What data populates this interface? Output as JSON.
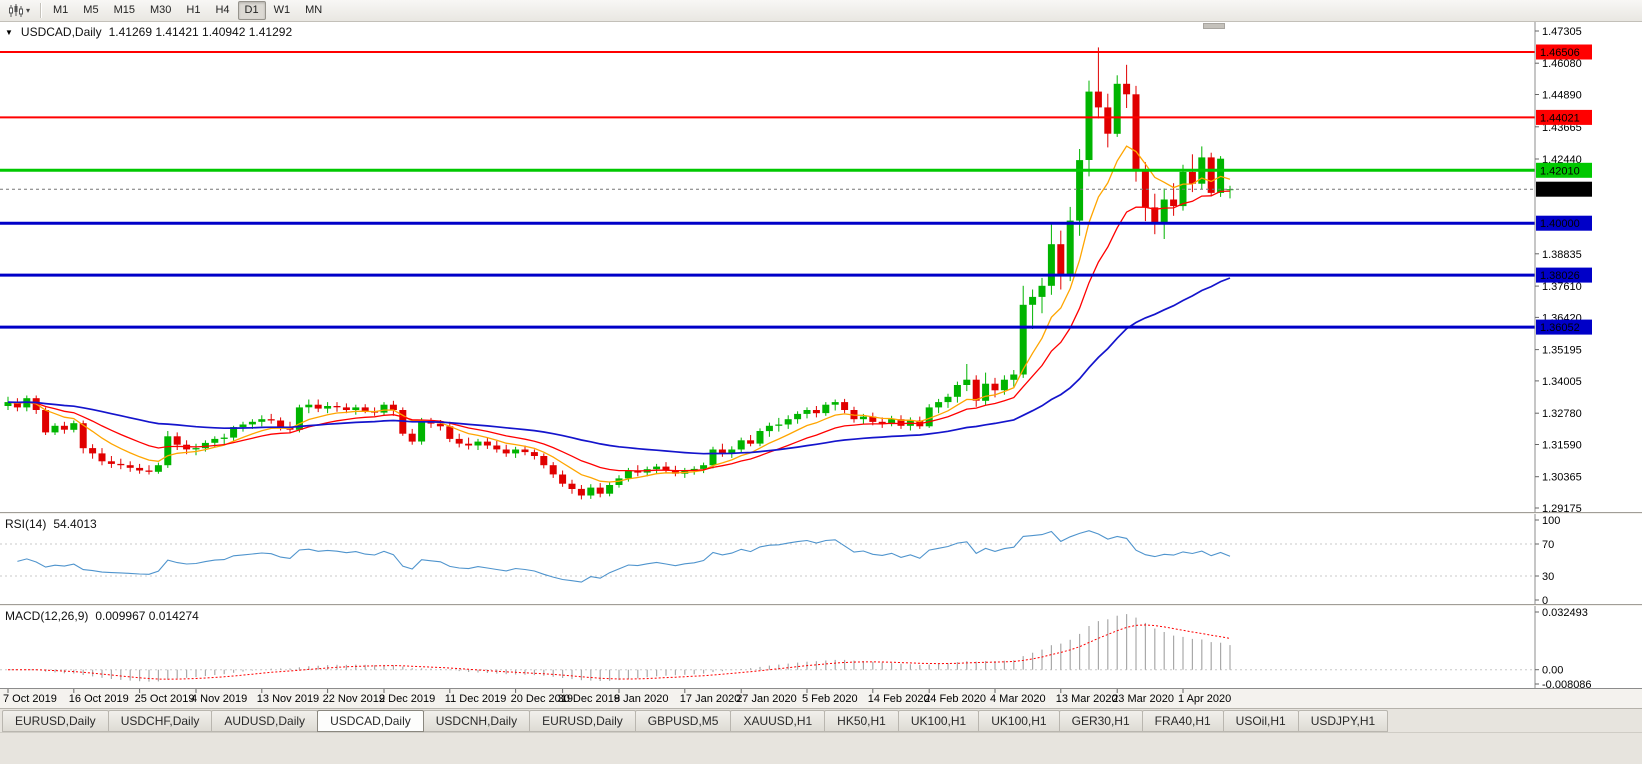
{
  "toolbar": {
    "timeframes": [
      "M1",
      "M5",
      "M15",
      "M30",
      "H1",
      "H4",
      "D1",
      "W1",
      "MN"
    ],
    "active": "D1"
  },
  "icons": {
    "dropdown_caret": "▾",
    "symbol_marker": "▼",
    "chart_type": "candlestick-chart-icon"
  },
  "chart_data": {
    "type": "candlestick",
    "symbol": "USDCAD",
    "timeframe": "Daily",
    "title": "USDCAD,Daily",
    "ohlc_readout": "1.41269 1.41421 1.40942 1.41292",
    "last_bar": {
      "open": 1.41269,
      "high": 1.41421,
      "low": 1.40942,
      "close": 1.41292
    },
    "style": {
      "up_color": "#00b400",
      "down_color": "#e00000",
      "background": "#ffffff"
    },
    "y_axis": {
      "max": 1.47305,
      "min": 1.29175,
      "ticks": [
        "1.47305",
        "1.46080",
        "1.44890",
        "1.43665",
        "1.42440",
        "1.38835",
        "1.37610",
        "1.36420",
        "1.35195",
        "1.34005",
        "1.32780",
        "1.31590",
        "1.30365",
        "1.29175"
      ]
    },
    "x_axis": {
      "labels": [
        {
          "i": 0,
          "t": "7 Oct 2019"
        },
        {
          "i": 7,
          "t": "16 Oct 2019"
        },
        {
          "i": 14,
          "t": "25 Oct 2019"
        },
        {
          "i": 20,
          "t": "4 Nov 2019"
        },
        {
          "i": 27,
          "t": "13 Nov 2019"
        },
        {
          "i": 34,
          "t": "22 Nov 2019"
        },
        {
          "i": 40,
          "t": "2 Dec 2019"
        },
        {
          "i": 47,
          "t": "11 Dec 2019"
        },
        {
          "i": 54,
          "t": "20 Dec 2019"
        },
        {
          "i": 59,
          "t": "30 Dec 2019"
        },
        {
          "i": 65,
          "t": "8 Jan 2020"
        },
        {
          "i": 72,
          "t": "17 Jan 2020"
        },
        {
          "i": 78,
          "t": "27 Jan 2020"
        },
        {
          "i": 85,
          "t": "5 Feb 2020"
        },
        {
          "i": 92,
          "t": "14 Feb 2020"
        },
        {
          "i": 98,
          "t": "24 Feb 2020"
        },
        {
          "i": 105,
          "t": "4 Mar 2020"
        },
        {
          "i": 112,
          "t": "13 Mar 2020"
        },
        {
          "i": 118,
          "t": "23 Mar 2020"
        },
        {
          "i": 125,
          "t": "1 Apr 2020"
        }
      ]
    },
    "candles": [
      [
        1.3305,
        1.334,
        1.329,
        1.332
      ],
      [
        1.332,
        1.3335,
        1.3285,
        1.33
      ],
      [
        1.33,
        1.3345,
        1.3285,
        1.3335
      ],
      [
        1.3335,
        1.3345,
        1.3275,
        1.329
      ],
      [
        1.329,
        1.33,
        1.3195,
        1.3205
      ],
      [
        1.3205,
        1.324,
        1.3195,
        1.323
      ],
      [
        1.323,
        1.3245,
        1.32,
        1.3215
      ],
      [
        1.3215,
        1.325,
        1.3205,
        1.324
      ],
      [
        1.324,
        1.325,
        1.3125,
        1.3145
      ],
      [
        1.3145,
        1.316,
        1.3105,
        1.3125
      ],
      [
        1.3125,
        1.3145,
        1.308,
        1.3095
      ],
      [
        1.3095,
        1.3115,
        1.307,
        1.3085
      ],
      [
        1.3085,
        1.3105,
        1.3065,
        1.308
      ],
      [
        1.308,
        1.3095,
        1.3055,
        1.307
      ],
      [
        1.307,
        1.3085,
        1.3048,
        1.306
      ],
      [
        1.306,
        1.308,
        1.3045,
        1.3055
      ],
      [
        1.3055,
        1.309,
        1.3048,
        1.308
      ],
      [
        1.308,
        1.321,
        1.307,
        1.319
      ],
      [
        1.319,
        1.3205,
        1.3138,
        1.3158
      ],
      [
        1.3158,
        1.3175,
        1.3122,
        1.314
      ],
      [
        1.314,
        1.3162,
        1.3118,
        1.3145
      ],
      [
        1.3145,
        1.3175,
        1.3132,
        1.3165
      ],
      [
        1.3165,
        1.319,
        1.3148,
        1.318
      ],
      [
        1.318,
        1.32,
        1.3158,
        1.3185
      ],
      [
        1.3185,
        1.323,
        1.3172,
        1.3225
      ],
      [
        1.3225,
        1.3245,
        1.3208,
        1.3235
      ],
      [
        1.3235,
        1.3255,
        1.3218,
        1.3245
      ],
      [
        1.3245,
        1.327,
        1.3228,
        1.3255
      ],
      [
        1.3255,
        1.3275,
        1.3238,
        1.325
      ],
      [
        1.325,
        1.3262,
        1.3212,
        1.3225
      ],
      [
        1.3225,
        1.3245,
        1.3202,
        1.3215
      ],
      [
        1.3215,
        1.331,
        1.3205,
        1.33
      ],
      [
        1.33,
        1.333,
        1.3278,
        1.331
      ],
      [
        1.331,
        1.333,
        1.3282,
        1.3295
      ],
      [
        1.3295,
        1.332,
        1.3278,
        1.3305
      ],
      [
        1.3305,
        1.332,
        1.3283,
        1.33
      ],
      [
        1.33,
        1.3315,
        1.3278,
        1.329
      ],
      [
        1.329,
        1.331,
        1.3272,
        1.33
      ],
      [
        1.33,
        1.3312,
        1.3278,
        1.3285
      ],
      [
        1.3285,
        1.33,
        1.3268,
        1.328
      ],
      [
        1.328,
        1.332,
        1.3268,
        1.331
      ],
      [
        1.331,
        1.3325,
        1.3268,
        1.329
      ],
      [
        1.329,
        1.33,
        1.3192,
        1.32
      ],
      [
        1.32,
        1.3218,
        1.3158,
        1.317
      ],
      [
        1.317,
        1.326,
        1.3158,
        1.3248
      ],
      [
        1.3248,
        1.326,
        1.3222,
        1.3238
      ],
      [
        1.3238,
        1.3252,
        1.3212,
        1.3228
      ],
      [
        1.3228,
        1.3245,
        1.3168,
        1.318
      ],
      [
        1.318,
        1.32,
        1.3148,
        1.3162
      ],
      [
        1.3162,
        1.3185,
        1.314,
        1.3155
      ],
      [
        1.3155,
        1.318,
        1.3138,
        1.317
      ],
      [
        1.317,
        1.3185,
        1.3142,
        1.3155
      ],
      [
        1.3155,
        1.3172,
        1.3128,
        1.314
      ],
      [
        1.314,
        1.3158,
        1.3112,
        1.3125
      ],
      [
        1.3125,
        1.315,
        1.3108,
        1.314
      ],
      [
        1.314,
        1.3155,
        1.3118,
        1.313
      ],
      [
        1.313,
        1.314,
        1.3102,
        1.3115
      ],
      [
        1.3115,
        1.3125,
        1.3068,
        1.308
      ],
      [
        1.308,
        1.3092,
        1.3032,
        1.3045
      ],
      [
        1.3045,
        1.306,
        1.2998,
        1.301
      ],
      [
        1.301,
        1.3025,
        1.2972,
        1.299
      ],
      [
        1.299,
        1.3005,
        1.295,
        1.2965
      ],
      [
        1.2965,
        1.3008,
        1.2952,
        1.2995
      ],
      [
        1.2995,
        1.3012,
        1.2958,
        1.2972
      ],
      [
        1.2972,
        1.3015,
        1.2962,
        1.3005
      ],
      [
        1.3005,
        1.3042,
        1.2995,
        1.303
      ],
      [
        1.303,
        1.307,
        1.3018,
        1.3058
      ],
      [
        1.3058,
        1.308,
        1.3038,
        1.3052
      ],
      [
        1.3052,
        1.3075,
        1.3038,
        1.3065
      ],
      [
        1.3065,
        1.3085,
        1.3048,
        1.3075
      ],
      [
        1.3075,
        1.3092,
        1.3052,
        1.3062
      ],
      [
        1.3062,
        1.3078,
        1.3038,
        1.3048
      ],
      [
        1.3048,
        1.307,
        1.3032,
        1.306
      ],
      [
        1.306,
        1.3076,
        1.3044,
        1.3066
      ],
      [
        1.3066,
        1.309,
        1.305,
        1.308
      ],
      [
        1.308,
        1.315,
        1.3068,
        1.314
      ],
      [
        1.314,
        1.3162,
        1.3112,
        1.3125
      ],
      [
        1.3125,
        1.3152,
        1.3108,
        1.314
      ],
      [
        1.314,
        1.3185,
        1.3128,
        1.3175
      ],
      [
        1.3175,
        1.3195,
        1.3152,
        1.3162
      ],
      [
        1.3162,
        1.322,
        1.3152,
        1.321
      ],
      [
        1.321,
        1.3242,
        1.3188,
        1.323
      ],
      [
        1.323,
        1.326,
        1.3208,
        1.3235
      ],
      [
        1.3235,
        1.327,
        1.3218,
        1.3255
      ],
      [
        1.3255,
        1.3285,
        1.3238,
        1.3275
      ],
      [
        1.3275,
        1.33,
        1.3258,
        1.329
      ],
      [
        1.329,
        1.3305,
        1.3262,
        1.3278
      ],
      [
        1.3278,
        1.332,
        1.3268,
        1.331
      ],
      [
        1.331,
        1.333,
        1.3288,
        1.332
      ],
      [
        1.332,
        1.3332,
        1.3278,
        1.329
      ],
      [
        1.329,
        1.3302,
        1.3242,
        1.3255
      ],
      [
        1.3255,
        1.3275,
        1.3238,
        1.3265
      ],
      [
        1.3265,
        1.328,
        1.3232,
        1.3245
      ],
      [
        1.3245,
        1.3262,
        1.3222,
        1.3238
      ],
      [
        1.3238,
        1.3268,
        1.3228,
        1.3255
      ],
      [
        1.3255,
        1.327,
        1.3218,
        1.323
      ],
      [
        1.323,
        1.3262,
        1.3212,
        1.325
      ],
      [
        1.325,
        1.3265,
        1.3218,
        1.3228
      ],
      [
        1.3228,
        1.3312,
        1.3222,
        1.33
      ],
      [
        1.33,
        1.3332,
        1.3278,
        1.332
      ],
      [
        1.332,
        1.3352,
        1.3298,
        1.334
      ],
      [
        1.334,
        1.3398,
        1.3318,
        1.3385
      ],
      [
        1.3385,
        1.3465,
        1.3362,
        1.3405
      ],
      [
        1.3405,
        1.3422,
        1.3302,
        1.3325
      ],
      [
        1.3325,
        1.3432,
        1.3308,
        1.339
      ],
      [
        1.339,
        1.3412,
        1.3338,
        1.3365
      ],
      [
        1.3365,
        1.3422,
        1.3348,
        1.3405
      ],
      [
        1.3405,
        1.3442,
        1.3378,
        1.3425
      ],
      [
        1.3425,
        1.3762,
        1.3412,
        1.369
      ],
      [
        1.369,
        1.3748,
        1.3598,
        1.372
      ],
      [
        1.372,
        1.3792,
        1.3658,
        1.3762
      ],
      [
        1.3762,
        1.3995,
        1.3728,
        1.392
      ],
      [
        1.392,
        1.3972,
        1.3748,
        1.3802
      ],
      [
        1.3802,
        1.4062,
        1.378,
        1.401
      ],
      [
        1.401,
        1.4282,
        1.3952,
        1.424
      ],
      [
        1.424,
        1.4542,
        1.4178,
        1.45
      ],
      [
        1.45,
        1.4668,
        1.4398,
        1.444
      ],
      [
        1.444,
        1.4492,
        1.4288,
        1.434
      ],
      [
        1.434,
        1.4562,
        1.4328,
        1.453
      ],
      [
        1.453,
        1.4602,
        1.4438,
        1.449
      ],
      [
        1.449,
        1.4522,
        1.4158,
        1.42
      ],
      [
        1.42,
        1.4232,
        1.4008,
        1.406
      ],
      [
        1.406,
        1.4112,
        1.3958,
        1.3995
      ],
      [
        1.3995,
        1.4132,
        1.394,
        1.409
      ],
      [
        1.409,
        1.4152,
        1.4028,
        1.4065
      ],
      [
        1.4065,
        1.4222,
        1.4048,
        1.4195
      ],
      [
        1.4195,
        1.4262,
        1.4118,
        1.415
      ],
      [
        1.415,
        1.4292,
        1.4128,
        1.425
      ],
      [
        1.425,
        1.4268,
        1.4102,
        1.4115
      ],
      [
        1.4115,
        1.4255,
        1.41,
        1.4245
      ],
      [
        1.41269,
        1.41421,
        1.40942,
        1.41292
      ]
    ],
    "overlays": {
      "moving_averages": [
        {
          "name": "ma-fast",
          "period": 8,
          "color": "#ffa500"
        },
        {
          "name": "ma-mid",
          "period": 16,
          "color": "#ff0000"
        },
        {
          "name": "ma-slow",
          "period": 50,
          "color": "#1414cc"
        }
      ],
      "hlines": [
        {
          "price": 1.46506,
          "label": "1.46506",
          "color": "#ff0000",
          "width": 2,
          "label_text_color": "#ffffff"
        },
        {
          "price": 1.44021,
          "label": "1.44021",
          "color": "#ff0000",
          "width": 2,
          "label_text_color": "#ffffff"
        },
        {
          "price": 1.4201,
          "label": "1.42010",
          "color": "#00c800",
          "width": 3,
          "label_text_color": "#000000"
        },
        {
          "price": 1.4,
          "label": "1.40000",
          "color": "#0000c8",
          "width": 3,
          "label_text_color": "#ffffff"
        },
        {
          "price": 1.38026,
          "label": "1.38026",
          "color": "#0000c8",
          "width": 3,
          "label_text_color": "#ffffff"
        },
        {
          "price": 1.36052,
          "label": "1.36052",
          "color": "#0000c8",
          "width": 3,
          "label_text_color": "#ffffff"
        }
      ],
      "current_price": {
        "value": 1.41292,
        "label": "1.41292",
        "line_color": "#777777",
        "box_color": "#000000"
      }
    },
    "indicators": [
      {
        "type": "rsi",
        "label": "RSI(14)",
        "value_text": "54.4013",
        "period": 14,
        "levels": [
          "100",
          "70",
          "30",
          "0"
        ],
        "line_color": "#4f94cd"
      },
      {
        "type": "macd",
        "label": "MACD(12,26,9)",
        "value_text": "0.009967 0.014274",
        "fast": 12,
        "slow": 26,
        "signal_period": 9,
        "axis_ticks": [
          "0.032493",
          "0.00",
          "-0.008086"
        ],
        "scale_max": 0.032493,
        "scale_min": -0.008086,
        "histogram_color": "#a9a9a9",
        "signal_color": "#ff0000"
      }
    ]
  },
  "tabs": {
    "active_index": 3,
    "items": [
      "EURUSD,Daily",
      "USDCHF,Daily",
      "AUDUSD,Daily",
      "USDCAD,Daily",
      "USDCNH,Daily",
      "EURUSD,Daily",
      "GBPUSD,M5",
      "XAUUSD,H1",
      "HK50,H1",
      "UK100,H1",
      "UK100,H1",
      "GER30,H1",
      "FRA40,H1",
      "USOil,H1",
      "USDJPY,H1"
    ]
  }
}
